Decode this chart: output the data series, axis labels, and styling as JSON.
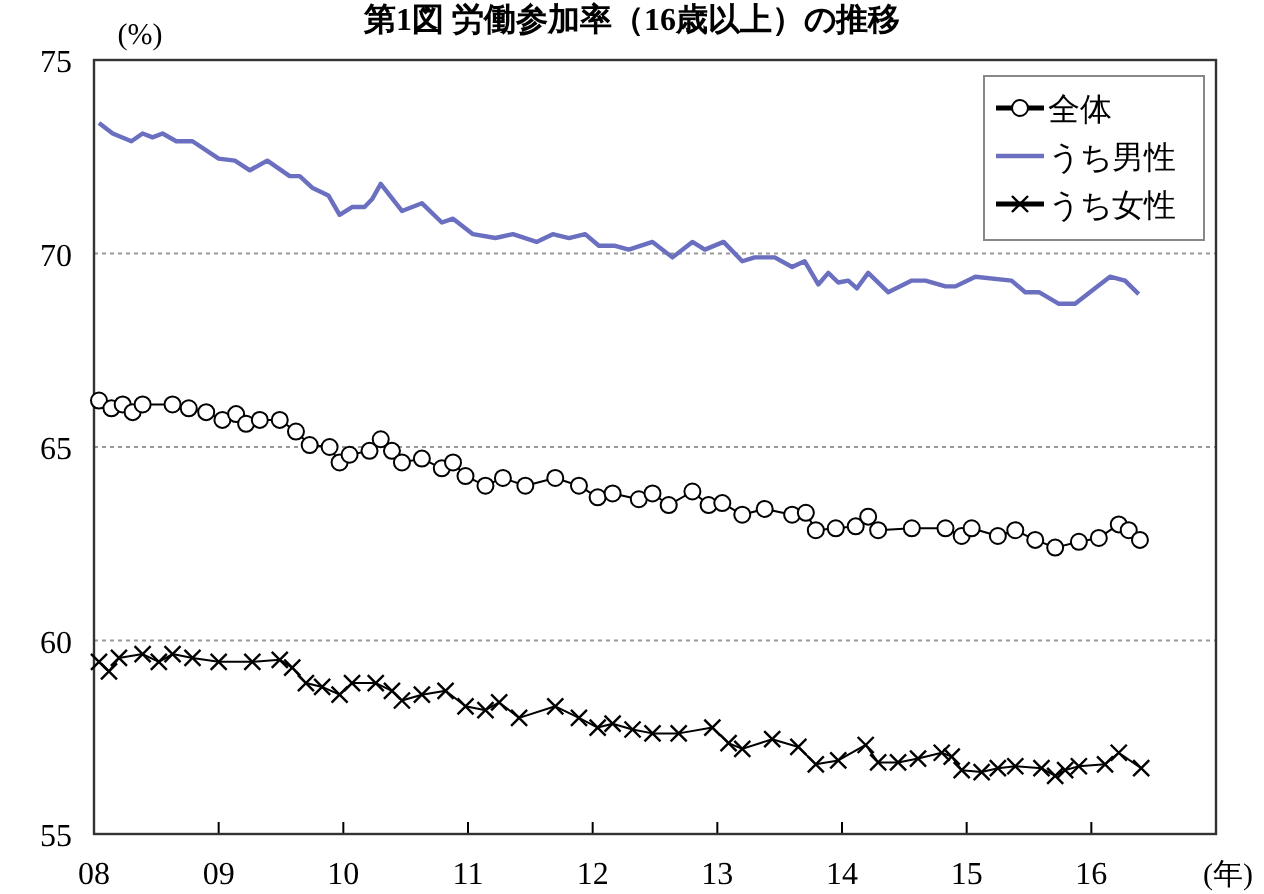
{
  "chart_data": {
    "type": "line",
    "title": "第1図 労働参加率（16歳以上）の推移",
    "ylabel": "(%)",
    "xlabel": "(年)",
    "xlim": [
      2008,
      2017
    ],
    "xticks": [
      {
        "value": 2008,
        "label": "08"
      },
      {
        "value": 2009,
        "label": "09"
      },
      {
        "value": 2010,
        "label": "10"
      },
      {
        "value": 2011,
        "label": "11"
      },
      {
        "value": 2012,
        "label": "12"
      },
      {
        "value": 2013,
        "label": "13"
      },
      {
        "value": 2014,
        "label": "14"
      },
      {
        "value": 2015,
        "label": "15"
      },
      {
        "value": 2016,
        "label": "16"
      }
    ],
    "ylim": [
      55,
      75
    ],
    "yticks": [
      55,
      60,
      65,
      70,
      75
    ],
    "grid": "y",
    "legend": "top right",
    "series": [
      {
        "name": "全体",
        "color": "#000000",
        "marker": "circle",
        "x": [
          2008.04,
          2008.14,
          2008.23,
          2008.31,
          2008.39,
          2008.63,
          2008.76,
          2008.9,
          2009.03,
          2009.14,
          2009.22,
          2009.33,
          2009.49,
          2009.62,
          2009.73,
          2009.89,
          2009.97,
          2010.05,
          2010.21,
          2010.3,
          2010.39,
          2010.47,
          2010.63,
          2010.79,
          2010.88,
          2010.98,
          2011.14,
          2011.28,
          2011.46,
          2011.7,
          2011.89,
          2012.04,
          2012.16,
          2012.37,
          2012.48,
          2012.61,
          2012.8,
          2012.93,
          2013.04,
          2013.2,
          2013.38,
          2013.6,
          2013.71,
          2013.79,
          2013.95,
          2014.11,
          2014.21,
          2014.29,
          2014.56,
          2014.83,
          2014.96,
          2015.04,
          2015.25,
          2015.39,
          2015.55,
          2015.71,
          2015.9,
          2016.06,
          2016.22,
          2016.3,
          2016.39
        ],
        "values": [
          66.2,
          66.0,
          66.1,
          65.9,
          66.1,
          66.1,
          66.0,
          65.9,
          65.7,
          65.85,
          65.6,
          65.7,
          65.7,
          65.4,
          65.05,
          65.0,
          64.6,
          64.8,
          64.9,
          65.2,
          64.9,
          64.6,
          64.7,
          64.45,
          64.6,
          64.25,
          64.0,
          64.2,
          64.0,
          64.2,
          64.0,
          63.7,
          63.8,
          63.65,
          63.8,
          63.5,
          63.85,
          63.5,
          63.55,
          63.25,
          63.4,
          63.25,
          63.3,
          62.85,
          62.9,
          62.95,
          63.2,
          62.85,
          62.9,
          62.9,
          62.7,
          62.9,
          62.7,
          62.85,
          62.6,
          62.4,
          62.55,
          62.65,
          63.0,
          62.85,
          62.6
        ]
      },
      {
        "name": "うち男性",
        "color": "#6b6fc0",
        "marker": "none",
        "x": [
          2008.04,
          2008.15,
          2008.3,
          2008.39,
          2008.47,
          2008.55,
          2008.66,
          2008.79,
          2009.0,
          2009.13,
          2009.25,
          2009.39,
          2009.57,
          2009.65,
          2009.75,
          2009.88,
          2009.97,
          2010.07,
          2010.17,
          2010.23,
          2010.3,
          2010.47,
          2010.63,
          2010.79,
          2010.88,
          2011.04,
          2011.22,
          2011.36,
          2011.55,
          2011.68,
          2011.81,
          2011.94,
          2012.05,
          2012.18,
          2012.29,
          2012.48,
          2012.64,
          2012.8,
          2012.9,
          2013.05,
          2013.2,
          2013.3,
          2013.46,
          2013.6,
          2013.7,
          2013.81,
          2013.89,
          2013.97,
          2014.05,
          2014.12,
          2014.21,
          2014.37,
          2014.56,
          2014.67,
          2014.83,
          2014.91,
          2015.07,
          2015.36,
          2015.47,
          2015.58,
          2015.74,
          2015.87,
          2016.03,
          2016.15,
          2016.27,
          2016.38
        ],
        "values": [
          73.37,
          73.1,
          72.9,
          73.1,
          73.0,
          73.1,
          72.9,
          72.9,
          72.45,
          72.4,
          72.15,
          72.4,
          72.0,
          72.0,
          71.7,
          71.5,
          71.0,
          71.2,
          71.2,
          71.4,
          71.8,
          71.1,
          71.3,
          70.8,
          70.9,
          70.5,
          70.4,
          70.5,
          70.3,
          70.5,
          70.4,
          70.5,
          70.2,
          70.2,
          70.1,
          70.3,
          69.9,
          70.3,
          70.1,
          70.3,
          69.8,
          69.9,
          69.9,
          69.65,
          69.8,
          69.2,
          69.5,
          69.25,
          69.3,
          69.1,
          69.5,
          69.0,
          69.3,
          69.3,
          69.15,
          69.15,
          69.4,
          69.3,
          69.0,
          69.0,
          68.7,
          68.7,
          69.1,
          69.4,
          69.3,
          68.95
        ]
      },
      {
        "name": "うち女性",
        "color": "#000000",
        "marker": "cross",
        "x": [
          2008.04,
          2008.12,
          2008.2,
          2008.39,
          2008.52,
          2008.63,
          2008.79,
          2009.0,
          2009.27,
          2009.49,
          2009.59,
          2009.7,
          2009.83,
          2009.97,
          2010.07,
          2010.26,
          2010.39,
          2010.47,
          2010.63,
          2010.82,
          2010.98,
          2011.14,
          2011.25,
          2011.41,
          2011.7,
          2011.89,
          2012.04,
          2012.16,
          2012.32,
          2012.48,
          2012.69,
          2012.96,
          2013.09,
          2013.2,
          2013.44,
          2013.65,
          2013.79,
          2013.97,
          2014.19,
          2014.29,
          2014.45,
          2014.61,
          2014.8,
          2014.88,
          2014.96,
          2015.12,
          2015.25,
          2015.39,
          2015.6,
          2015.71,
          2015.79,
          2015.9,
          2016.11,
          2016.22,
          2016.4
        ],
        "values": [
          59.45,
          59.2,
          59.55,
          59.65,
          59.45,
          59.65,
          59.55,
          59.45,
          59.45,
          59.5,
          59.3,
          58.9,
          58.8,
          58.6,
          58.9,
          58.9,
          58.7,
          58.45,
          58.6,
          58.7,
          58.3,
          58.2,
          58.4,
          58.0,
          58.3,
          58.0,
          57.75,
          57.85,
          57.7,
          57.6,
          57.6,
          57.75,
          57.35,
          57.2,
          57.45,
          57.25,
          56.8,
          56.9,
          57.3,
          56.85,
          56.85,
          56.95,
          57.1,
          57.0,
          56.65,
          56.6,
          56.7,
          56.75,
          56.7,
          56.5,
          56.65,
          56.75,
          56.8,
          57.1,
          56.7
        ]
      }
    ]
  }
}
